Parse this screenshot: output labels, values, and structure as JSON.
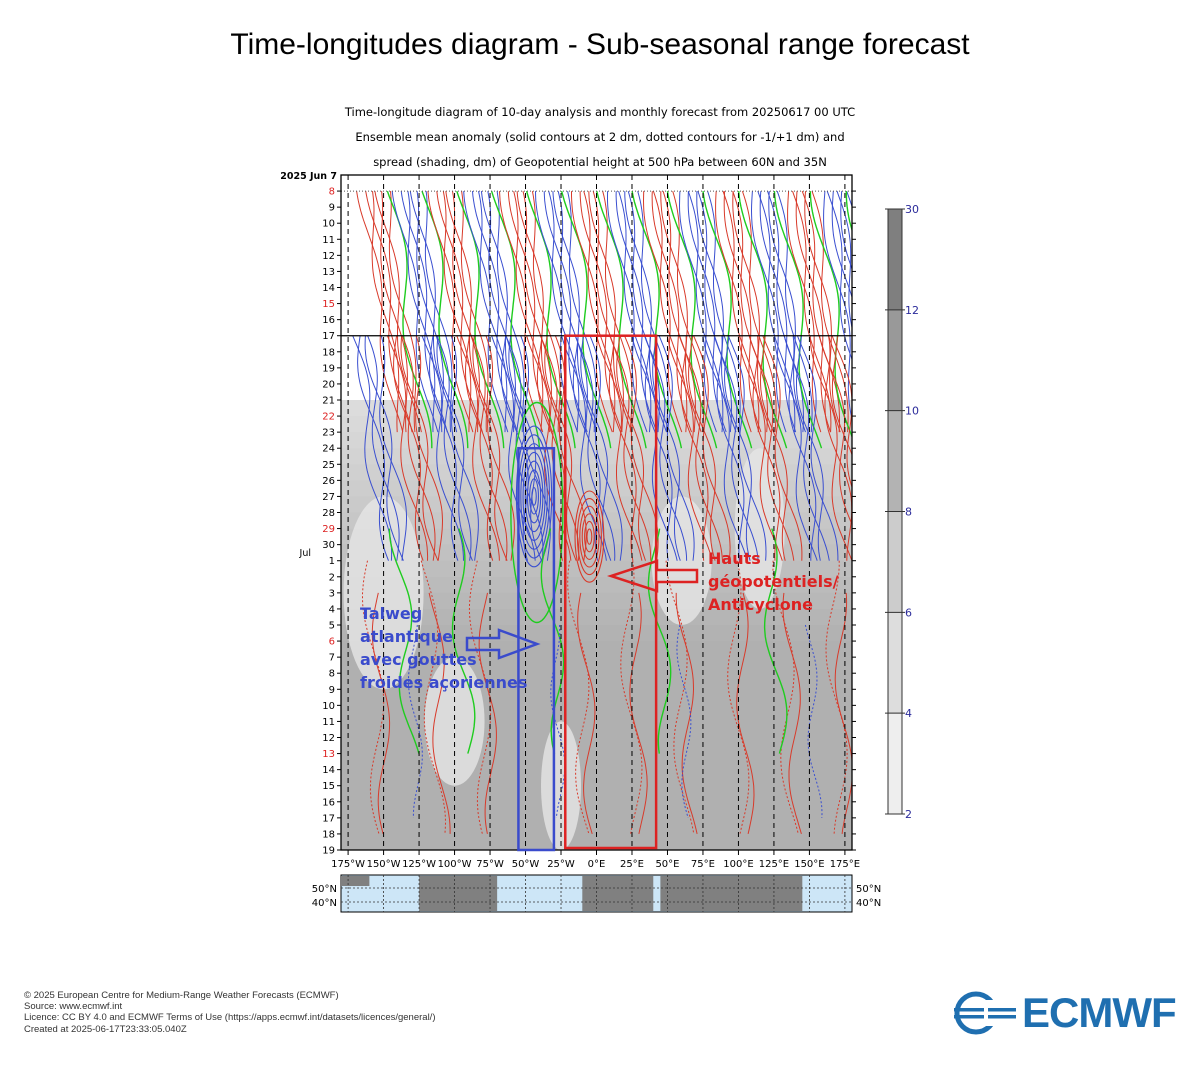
{
  "header": {
    "title": "Time-longitudes diagram - Sub-seasonal range forecast",
    "subtitle_lines": [
      "Time-longitude diagram of 10-day analysis and monthly forecast from 20250617 00 UTC",
      "Ensemble mean anomaly (solid contours at 2 dm, dotted contours for -1/+1 dm) and",
      "spread (shading, dm) of Geopotential height at 500 hPa between 60N and 35N"
    ]
  },
  "chart_data": {
    "type": "heatmap",
    "x_axis": {
      "tick_labels": [
        "175°W",
        "150°W",
        "125°W",
        "100°W",
        "75°W",
        "50°W",
        "25°W",
        "0°E",
        "25°E",
        "50°E",
        "75°E",
        "100°E",
        "125°E",
        "150°E",
        "175°E"
      ],
      "tick_values": [
        -175,
        -150,
        -125,
        -100,
        -75,
        -50,
        -25,
        0,
        25,
        50,
        75,
        100,
        125,
        150,
        175
      ],
      "range": [
        -180,
        180
      ]
    },
    "y_axis": {
      "top_label": "2025 Jun  7",
      "month_label": "Jul",
      "day_labels": [
        "8",
        "9",
        "10",
        "11",
        "12",
        "13",
        "14",
        "15",
        "16",
        "17",
        "18",
        "19",
        "20",
        "21",
        "22",
        "23",
        "24",
        "25",
        "26",
        "27",
        "28",
        "29",
        "30",
        "1",
        "2",
        "3",
        "4",
        "5",
        "6",
        "7",
        "8",
        "9",
        "10",
        "11",
        "12",
        "13",
        "14",
        "15",
        "16",
        "17",
        "18",
        "19"
      ],
      "highlighted_days": [
        "8",
        "15",
        "22",
        "29",
        "6",
        "13"
      ],
      "highlight_color": "#dd2222",
      "range": [
        "2025-06-07",
        "2025-07-19"
      ],
      "analysis_end_line": "2025-06-17"
    },
    "colorbar": {
      "variable": "spread (dm)",
      "tick_labels": [
        "30",
        "12",
        "10",
        "8",
        "6",
        "4",
        "2"
      ],
      "levels": [
        2,
        4,
        6,
        8,
        10,
        12,
        30
      ]
    },
    "map_strip": {
      "lat_labels_left": [
        "50°N",
        "40°N"
      ],
      "lat_labels_right": [
        "50°N",
        "40°N"
      ]
    },
    "contours": {
      "positive_color": "#d83a2a",
      "negative_color": "#3a4fd0",
      "zero_color": "#1fcc1f"
    }
  },
  "annotations": {
    "trough": {
      "lines": [
        "Talweg",
        "atlantique",
        "avec gouttes",
        "froides açoriennes"
      ],
      "color": "#3a4bcc",
      "lon_range": [
        -55,
        -30
      ],
      "date_range": [
        "2025-06-24",
        "2025-07-19"
      ]
    },
    "ridge": {
      "lines": [
        "Hauts",
        "géopotentiels/",
        "Anticyclone"
      ],
      "color": "#dd2222",
      "lon_range": [
        -22,
        42
      ],
      "date_range": [
        "2025-06-17",
        "2025-07-19"
      ]
    }
  },
  "footer": {
    "lines": [
      "© 2025 European Centre for Medium-Range Weather Forecasts (ECMWF)",
      "Source: www.ecmwf.int",
      "Licence: CC BY 4.0 and ECMWF Terms of Use (https://apps.ecmwf.int/datasets/licences/general/)",
      "Created at 2025-06-17T23:33:05.040Z"
    ],
    "logo_text": "ECMWF",
    "logo_color": "#1f6fb0"
  }
}
